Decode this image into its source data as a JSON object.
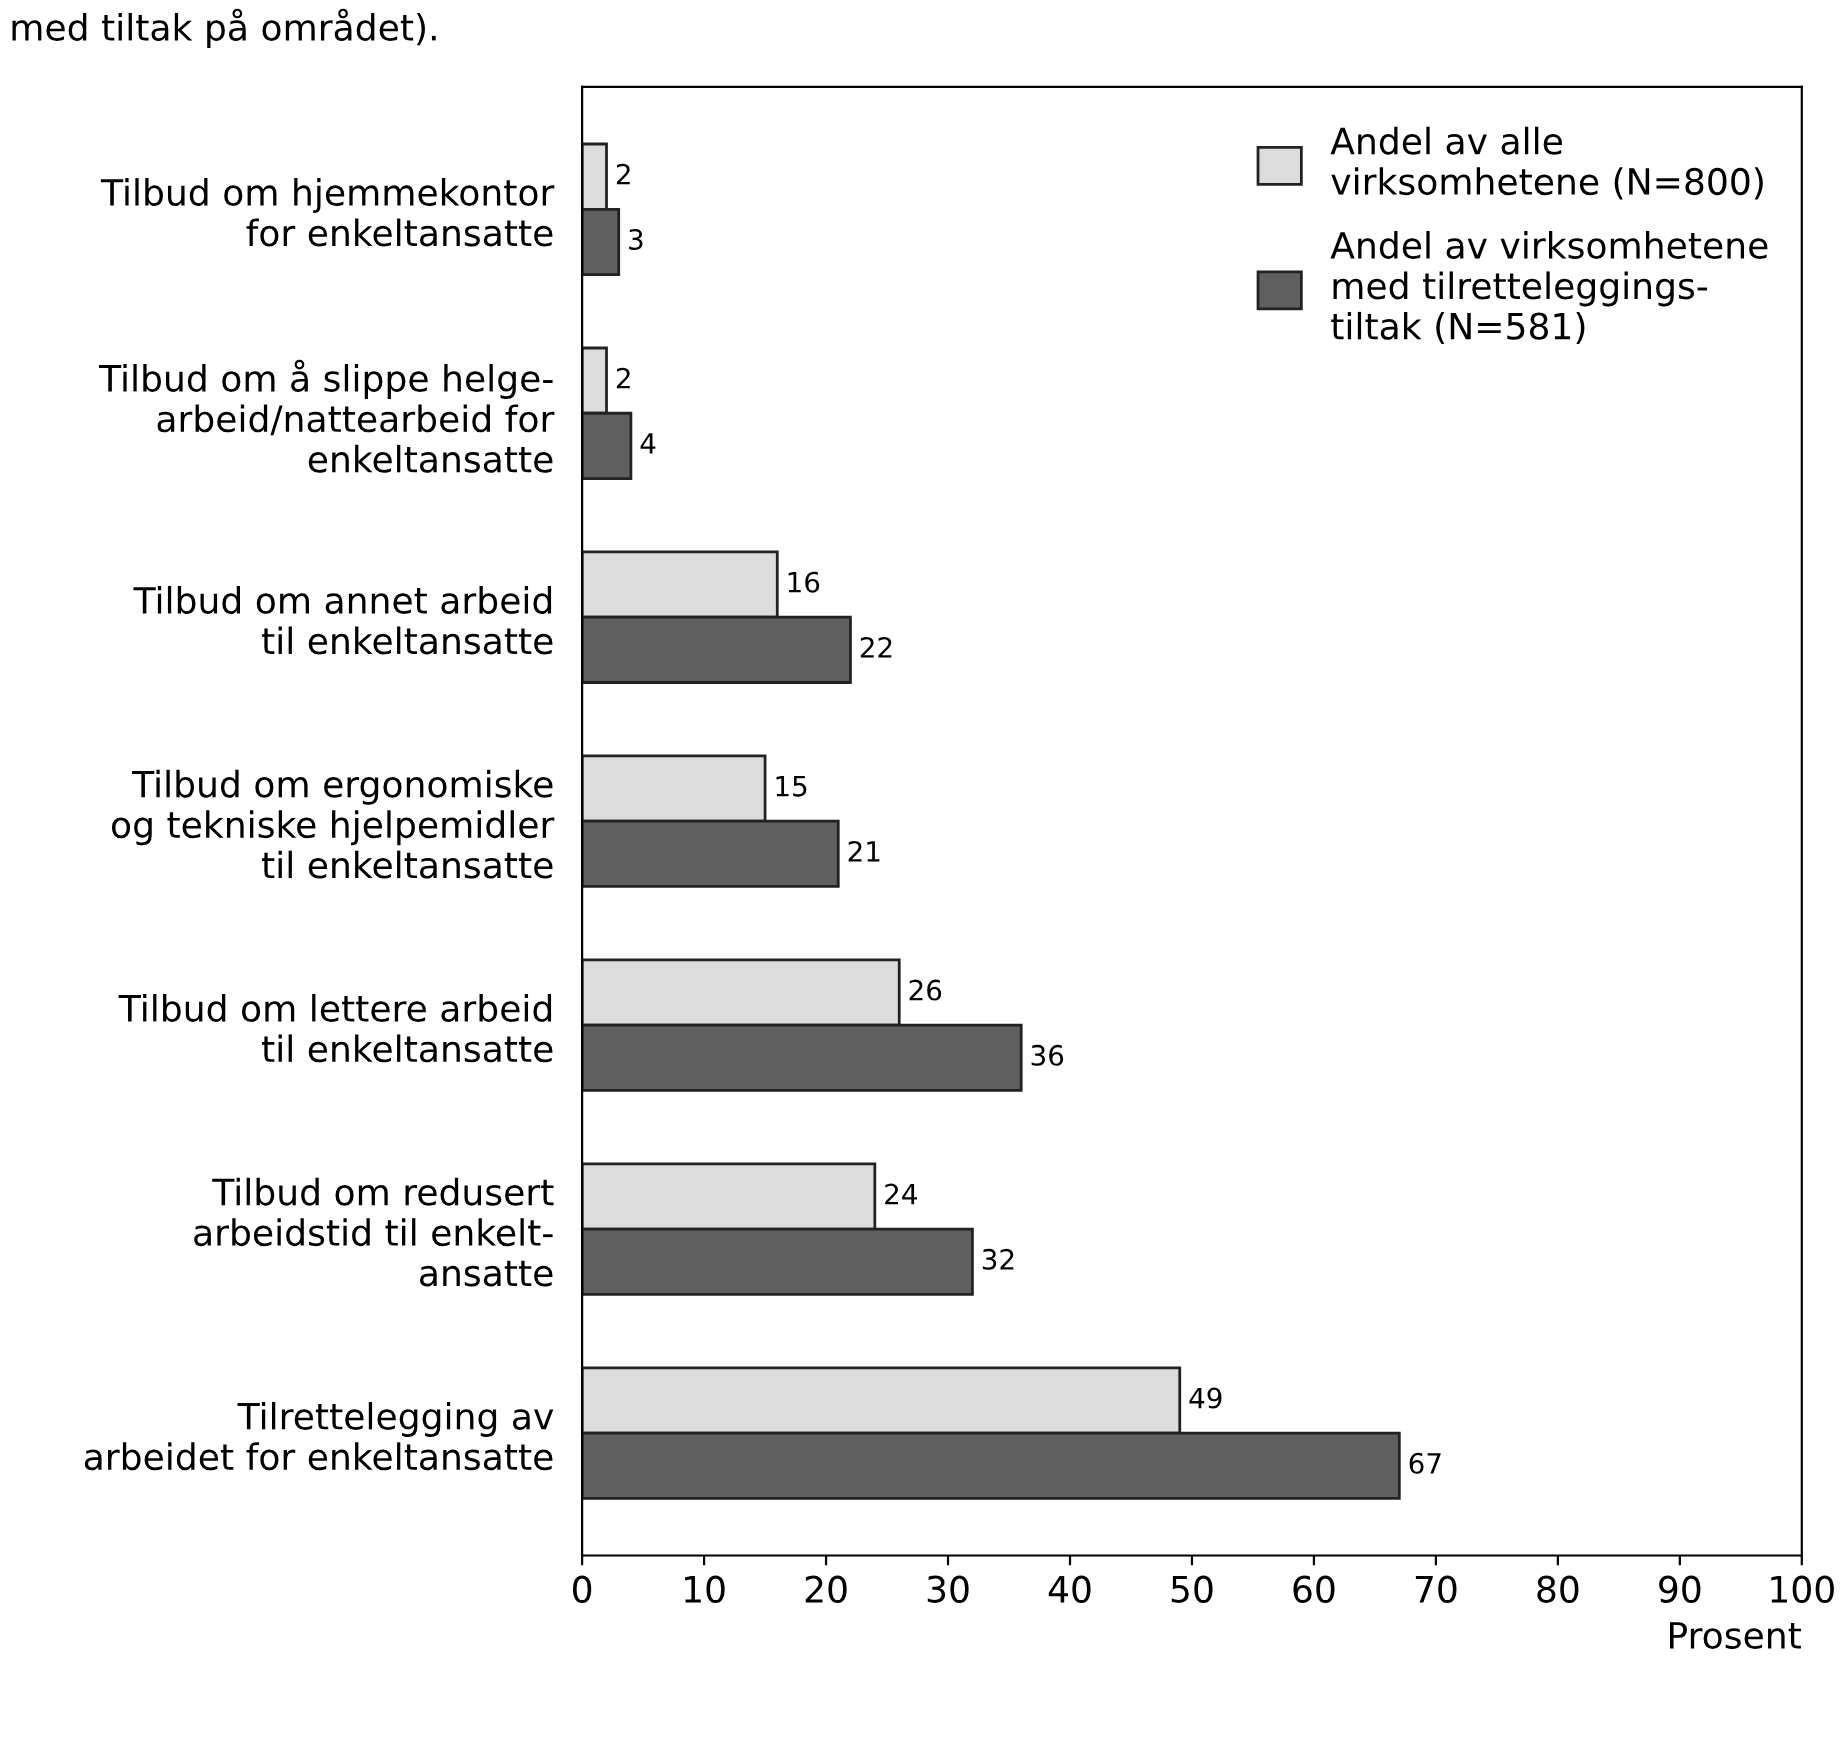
{
  "chart_data": {
    "type": "bar",
    "orientation": "horizontal",
    "xlabel": "Prosent",
    "annotations": [
      "med tiltak på området)."
    ],
    "categories": [
      "Tilbud om hjemmekontor\nfor enkeltansatte",
      "Tilbud om å slippe helge-\narbeid/nattearbeid for\nenkeltansatte",
      "Tilbud om annet arbeid\ntil enkeltansatte",
      "Tilbud om ergonomiske\nog tekniske hjelpemidler\ntil enkeltansatte",
      "Tilbud om lettere arbeid\ntil enkeltansatte",
      "Tilbud om redusert\narbeidstid til enkelt-\nansatte",
      "Tilrettelegging av\narbeidet for enkeltansatte"
    ],
    "series": [
      {
        "name": "Andel av alle\nvirksomhetene (N=800)",
        "color": "#dcdcdc",
        "values": [
          2,
          2,
          16,
          15,
          26,
          24,
          49
        ]
      },
      {
        "name": "Andel av virksomhetene\nmed tilretteleggings-\ntiltak (N=581)",
        "color": "#5f5f5f",
        "values": [
          3,
          4,
          22,
          21,
          36,
          32,
          67
        ]
      }
    ],
    "xlim": [
      0,
      100
    ],
    "xticks": [
      0,
      10,
      20,
      30,
      40,
      50,
      60,
      70,
      80,
      90,
      100
    ],
    "data_labels": true,
    "legend": "top right",
    "grid": false
  }
}
